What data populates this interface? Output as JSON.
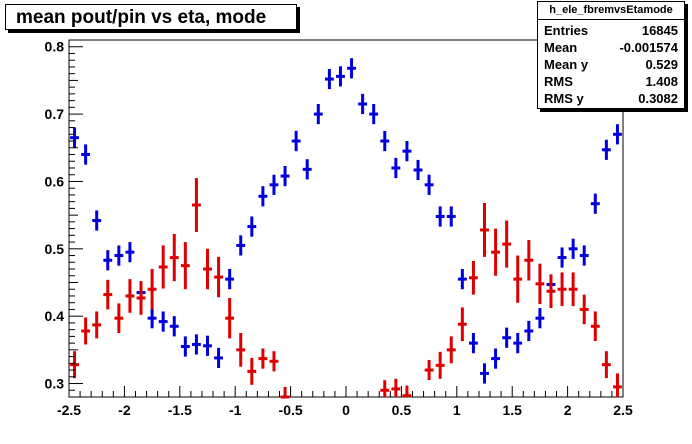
{
  "chart_data": {
    "type": "scatter",
    "title": "mean pout/pin vs eta, mode",
    "xlim": [
      -2.5,
      2.5
    ],
    "ylim": [
      0.28,
      0.81
    ],
    "xticks": [
      "-2.5",
      "-2",
      "-1.5",
      "-1",
      "-0.5",
      "0",
      "0.5",
      "1",
      "1.5",
      "2",
      "2.5"
    ],
    "xtick_values": [
      -2.5,
      -2,
      -1.5,
      -1,
      -0.5,
      0,
      0.5,
      1,
      1.5,
      2,
      2.5
    ],
    "yticks": [
      "0.3",
      "0.4",
      "0.5",
      "0.6",
      "0.7",
      "0.8"
    ],
    "ytick_values": [
      0.3,
      0.4,
      0.5,
      0.6,
      0.7,
      0.8
    ],
    "x_bin_half_width": 0.04,
    "series": [
      {
        "color": "#0000dd",
        "points": [
          {
            "x": -2.45,
            "y": 0.665,
            "err": 0.015
          },
          {
            "x": -2.35,
            "y": 0.64,
            "err": 0.015
          },
          {
            "x": -2.25,
            "y": 0.542,
            "err": 0.015
          },
          {
            "x": -2.15,
            "y": 0.483,
            "err": 0.015
          },
          {
            "x": -2.05,
            "y": 0.49,
            "err": 0.015
          },
          {
            "x": -1.95,
            "y": 0.495,
            "err": 0.015
          },
          {
            "x": -1.85,
            "y": 0.435,
            "err": 0.015
          },
          {
            "x": -1.75,
            "y": 0.397,
            "err": 0.015
          },
          {
            "x": -1.65,
            "y": 0.392,
            "err": 0.015
          },
          {
            "x": -1.55,
            "y": 0.385,
            "err": 0.015
          },
          {
            "x": -1.45,
            "y": 0.355,
            "err": 0.015
          },
          {
            "x": -1.35,
            "y": 0.358,
            "err": 0.015
          },
          {
            "x": -1.25,
            "y": 0.356,
            "err": 0.015
          },
          {
            "x": -1.15,
            "y": 0.338,
            "err": 0.015
          },
          {
            "x": -1.05,
            "y": 0.455,
            "err": 0.015
          },
          {
            "x": -0.95,
            "y": 0.505,
            "err": 0.015
          },
          {
            "x": -0.85,
            "y": 0.533,
            "err": 0.015
          },
          {
            "x": -0.75,
            "y": 0.578,
            "err": 0.015
          },
          {
            "x": -0.65,
            "y": 0.595,
            "err": 0.015
          },
          {
            "x": -0.55,
            "y": 0.608,
            "err": 0.015
          },
          {
            "x": -0.45,
            "y": 0.66,
            "err": 0.015
          },
          {
            "x": -0.35,
            "y": 0.618,
            "err": 0.015
          },
          {
            "x": -0.25,
            "y": 0.7,
            "err": 0.015
          },
          {
            "x": -0.15,
            "y": 0.752,
            "err": 0.015
          },
          {
            "x": -0.05,
            "y": 0.756,
            "err": 0.015
          },
          {
            "x": 0.05,
            "y": 0.768,
            "err": 0.015
          },
          {
            "x": 0.15,
            "y": 0.715,
            "err": 0.015
          },
          {
            "x": 0.25,
            "y": 0.7,
            "err": 0.015
          },
          {
            "x": 0.35,
            "y": 0.66,
            "err": 0.015
          },
          {
            "x": 0.45,
            "y": 0.62,
            "err": 0.015
          },
          {
            "x": 0.55,
            "y": 0.645,
            "err": 0.015
          },
          {
            "x": 0.65,
            "y": 0.617,
            "err": 0.015
          },
          {
            "x": 0.75,
            "y": 0.595,
            "err": 0.015
          },
          {
            "x": 0.85,
            "y": 0.548,
            "err": 0.015
          },
          {
            "x": 0.95,
            "y": 0.548,
            "err": 0.015
          },
          {
            "x": 1.05,
            "y": 0.455,
            "err": 0.015
          },
          {
            "x": 1.15,
            "y": 0.36,
            "err": 0.015
          },
          {
            "x": 1.25,
            "y": 0.315,
            "err": 0.015
          },
          {
            "x": 1.35,
            "y": 0.337,
            "err": 0.015
          },
          {
            "x": 1.45,
            "y": 0.368,
            "err": 0.015
          },
          {
            "x": 1.55,
            "y": 0.36,
            "err": 0.015
          },
          {
            "x": 1.65,
            "y": 0.378,
            "err": 0.015
          },
          {
            "x": 1.75,
            "y": 0.397,
            "err": 0.015
          },
          {
            "x": 1.85,
            "y": 0.447,
            "err": 0.015
          },
          {
            "x": 1.95,
            "y": 0.487,
            "err": 0.015
          },
          {
            "x": 2.05,
            "y": 0.5,
            "err": 0.015
          },
          {
            "x": 2.15,
            "y": 0.49,
            "err": 0.015
          },
          {
            "x": 2.25,
            "y": 0.567,
            "err": 0.015
          },
          {
            "x": 2.35,
            "y": 0.647,
            "err": 0.015
          },
          {
            "x": 2.45,
            "y": 0.67,
            "err": 0.015
          }
        ]
      },
      {
        "color": "#dd0000",
        "points": [
          {
            "x": -2.45,
            "y": 0.328,
            "err": 0.02
          },
          {
            "x": -2.35,
            "y": 0.378,
            "err": 0.02
          },
          {
            "x": -2.25,
            "y": 0.387,
            "err": 0.02
          },
          {
            "x": -2.15,
            "y": 0.432,
            "err": 0.022
          },
          {
            "x": -2.05,
            "y": 0.397,
            "err": 0.022
          },
          {
            "x": -1.95,
            "y": 0.43,
            "err": 0.025
          },
          {
            "x": -1.85,
            "y": 0.427,
            "err": 0.025
          },
          {
            "x": -1.75,
            "y": 0.44,
            "err": 0.03
          },
          {
            "x": -1.65,
            "y": 0.473,
            "err": 0.032
          },
          {
            "x": -1.55,
            "y": 0.487,
            "err": 0.035
          },
          {
            "x": -1.45,
            "y": 0.475,
            "err": 0.035
          },
          {
            "x": -1.35,
            "y": 0.565,
            "err": 0.04
          },
          {
            "x": -1.25,
            "y": 0.47,
            "err": 0.03
          },
          {
            "x": -1.15,
            "y": 0.458,
            "err": 0.03
          },
          {
            "x": -1.05,
            "y": 0.397,
            "err": 0.03
          },
          {
            "x": -0.95,
            "y": 0.35,
            "err": 0.025
          },
          {
            "x": -0.85,
            "y": 0.318,
            "err": 0.02
          },
          {
            "x": -0.75,
            "y": 0.337,
            "err": 0.015
          },
          {
            "x": -0.65,
            "y": 0.333,
            "err": 0.015
          },
          {
            "x": -0.55,
            "y": 0.28,
            "err": 0.015
          },
          {
            "x": 0.35,
            "y": 0.29,
            "err": 0.015
          },
          {
            "x": 0.45,
            "y": 0.292,
            "err": 0.015
          },
          {
            "x": 0.55,
            "y": 0.282,
            "err": 0.015
          },
          {
            "x": 0.75,
            "y": 0.32,
            "err": 0.015
          },
          {
            "x": 0.85,
            "y": 0.327,
            "err": 0.02
          },
          {
            "x": 0.95,
            "y": 0.35,
            "err": 0.02
          },
          {
            "x": 1.05,
            "y": 0.388,
            "err": 0.025
          },
          {
            "x": 1.15,
            "y": 0.457,
            "err": 0.025
          },
          {
            "x": 1.25,
            "y": 0.528,
            "err": 0.04
          },
          {
            "x": 1.35,
            "y": 0.495,
            "err": 0.035
          },
          {
            "x": 1.45,
            "y": 0.507,
            "err": 0.035
          },
          {
            "x": 1.55,
            "y": 0.455,
            "err": 0.035
          },
          {
            "x": 1.65,
            "y": 0.483,
            "err": 0.03
          },
          {
            "x": 1.75,
            "y": 0.448,
            "err": 0.03
          },
          {
            "x": 1.85,
            "y": 0.437,
            "err": 0.025
          },
          {
            "x": 1.95,
            "y": 0.44,
            "err": 0.025
          },
          {
            "x": 2.05,
            "y": 0.44,
            "err": 0.025
          },
          {
            "x": 2.15,
            "y": 0.41,
            "err": 0.022
          },
          {
            "x": 2.25,
            "y": 0.385,
            "err": 0.022
          },
          {
            "x": 2.35,
            "y": 0.328,
            "err": 0.02
          },
          {
            "x": 2.45,
            "y": 0.295,
            "err": 0.02
          }
        ]
      }
    ]
  },
  "stats": {
    "name": "h_ele_fbremvsEtamode",
    "rows": [
      {
        "label": "Entries",
        "value": "16845"
      },
      {
        "label": "Mean",
        "value": "-0.001574"
      },
      {
        "label": "Mean y",
        "value": "0.529"
      },
      {
        "label": "RMS",
        "value": "1.408"
      },
      {
        "label": "RMS y",
        "value": "0.3082"
      }
    ]
  }
}
